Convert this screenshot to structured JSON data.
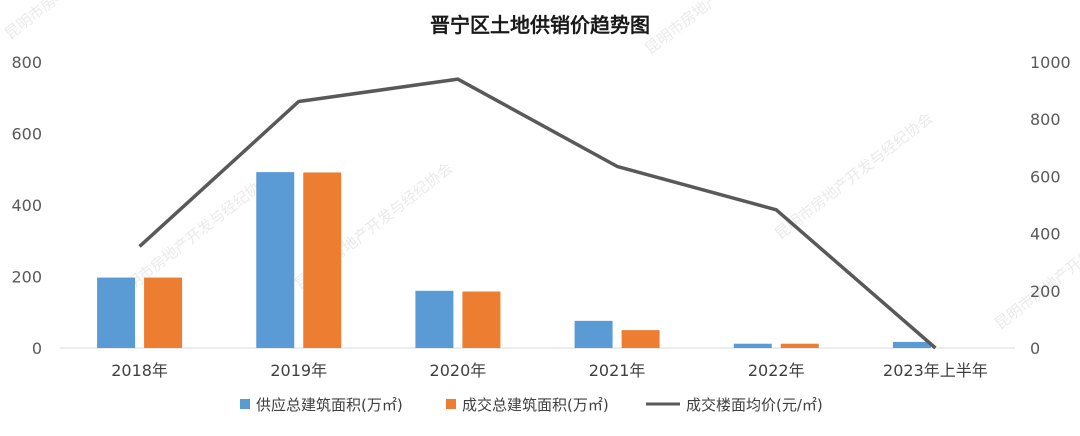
{
  "chart_data": {
    "type": "bar",
    "title": "晋宁区土地供销价趋势图",
    "categories": [
      "2018年",
      "2019年",
      "2020年",
      "2021年",
      "2022年",
      "2023年上半年"
    ],
    "series": [
      {
        "name": "供应总建筑面积(万㎡)",
        "kind": "bar",
        "axis": "left",
        "color": "#5B9BD5",
        "values": [
          197,
          492,
          160,
          76,
          12,
          17
        ]
      },
      {
        "name": "成交总建筑面积(万㎡)",
        "kind": "bar",
        "axis": "left",
        "color": "#ED7D31",
        "values": [
          197,
          491,
          158,
          50,
          12,
          0
        ]
      },
      {
        "name": "成交楼面均价(元/㎡)",
        "kind": "line",
        "axis": "right",
        "color": "#595959",
        "values": [
          355,
          862,
          940,
          635,
          483,
          0
        ]
      }
    ],
    "y_left": {
      "range": [
        0,
        800
      ],
      "ticks": [
        "0",
        "200",
        "400",
        "600",
        "800"
      ]
    },
    "y_right": {
      "range": [
        0,
        1000
      ],
      "ticks": [
        "0",
        "200",
        "400",
        "600",
        "800",
        "1000"
      ]
    },
    "grid": false,
    "legend_position": "bottom"
  },
  "watermark": "昆明市房地产开发与经纪协会"
}
